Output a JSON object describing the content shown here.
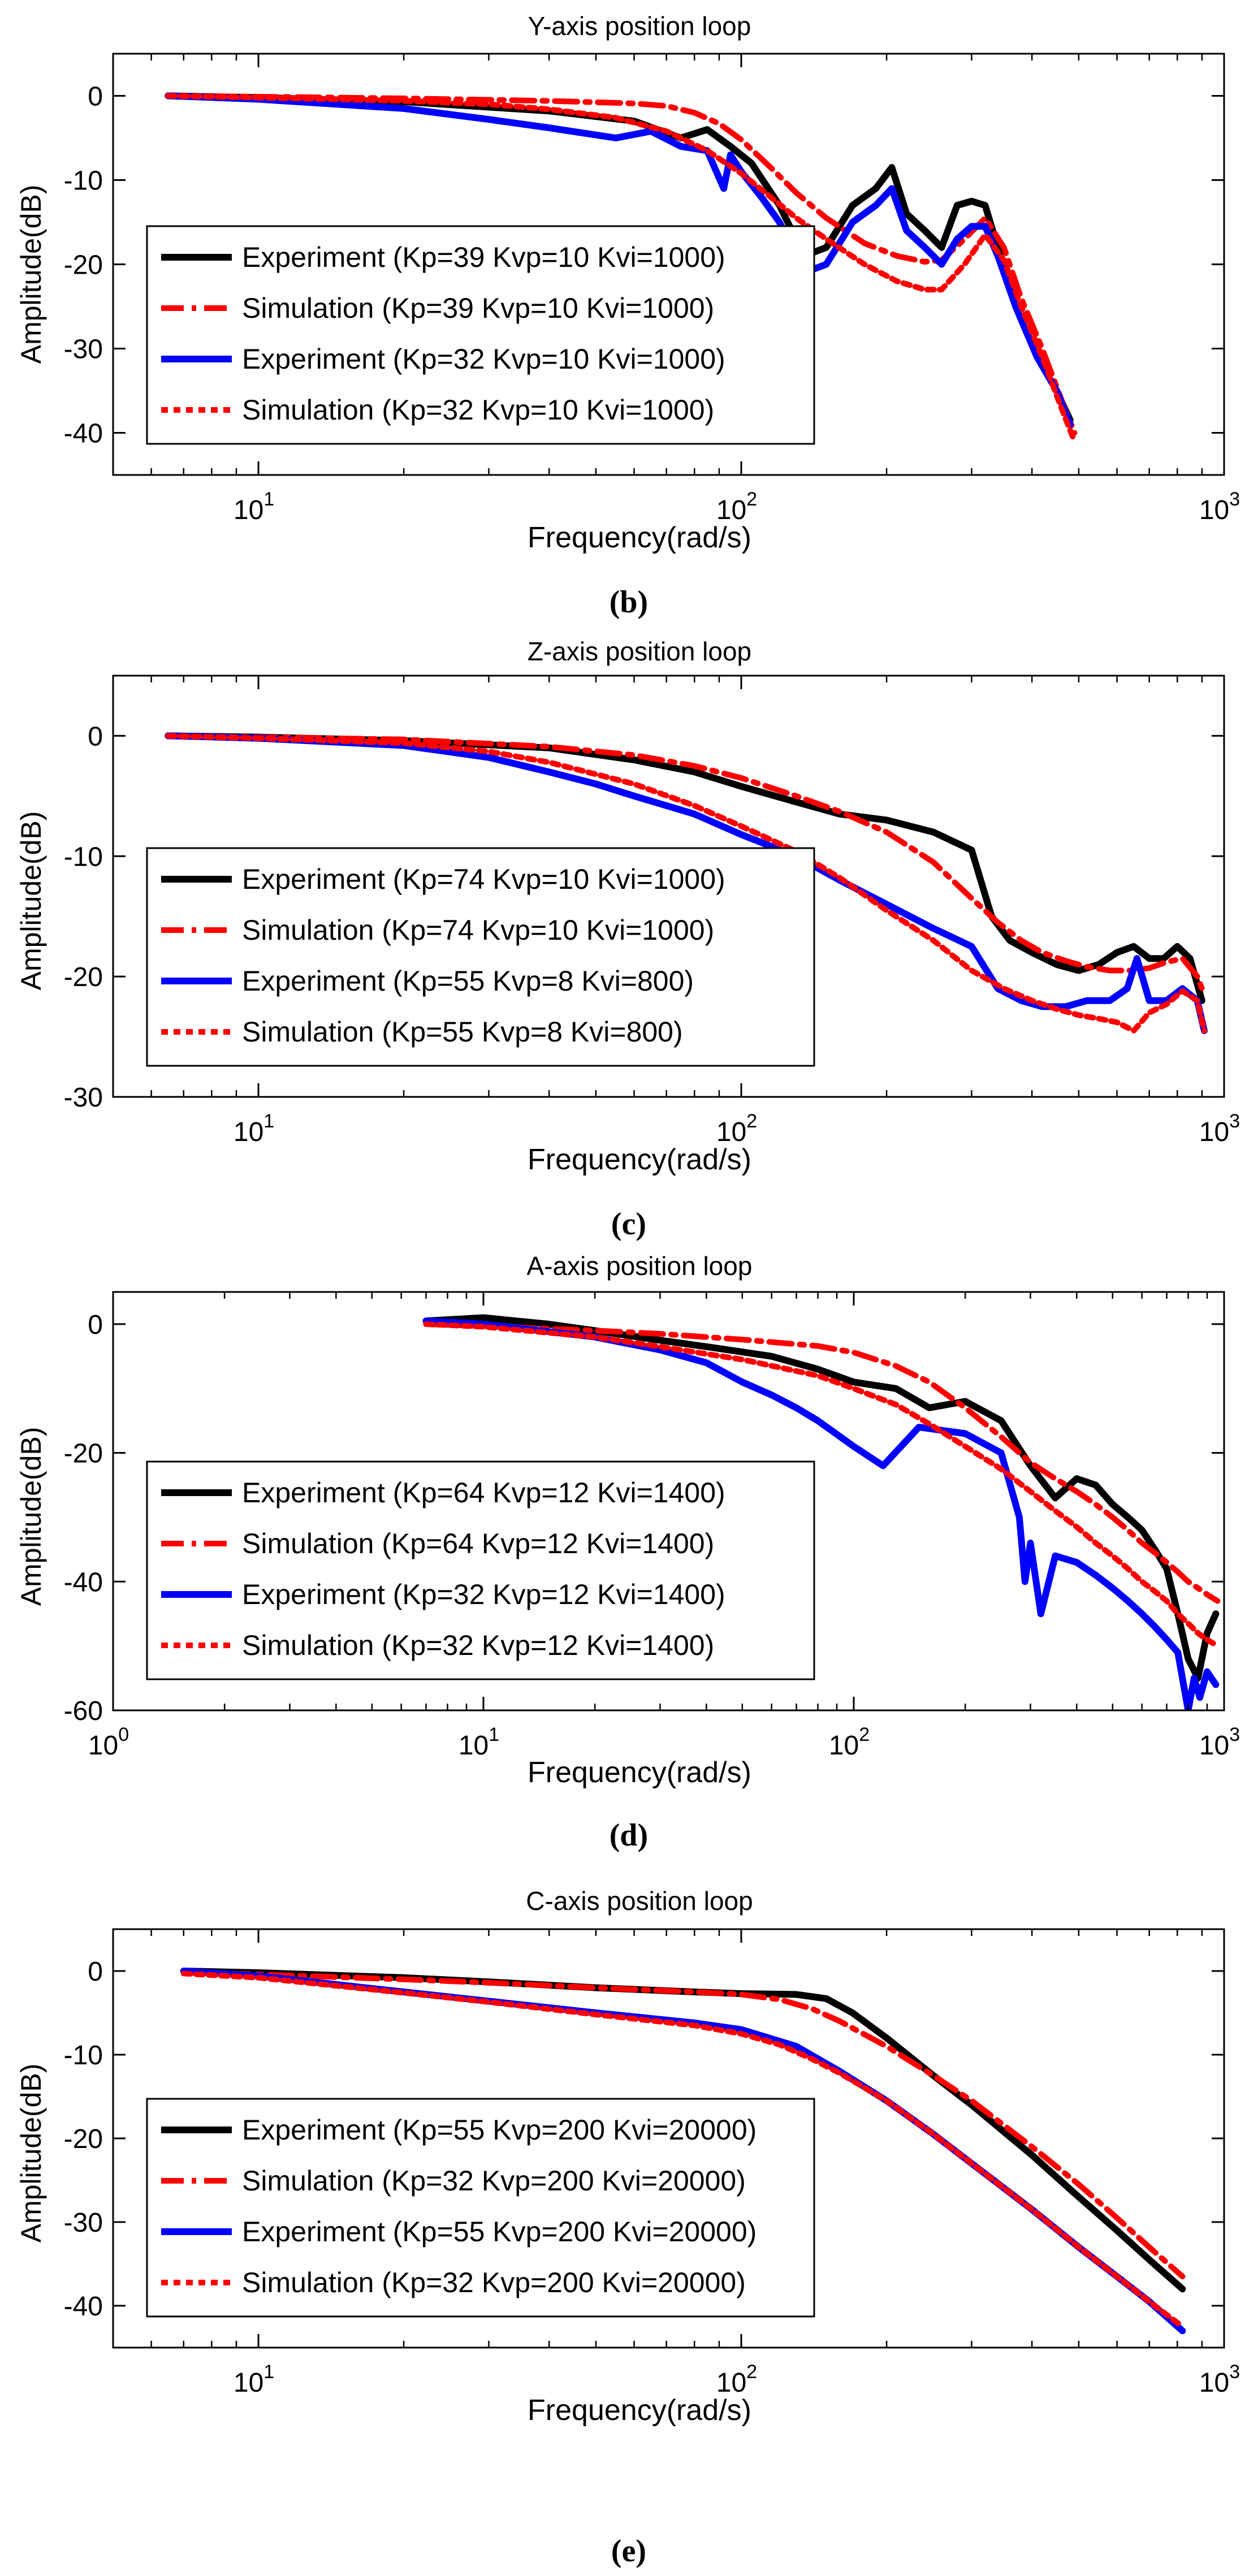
{
  "panels": [
    {
      "title": "Y-axis position loop",
      "xlabel": "Frequency(rad/s)",
      "ylabel": "Amplitude(dB)",
      "label": "(b)"
    },
    {
      "title": "Z-axis position loop",
      "xlabel": "Frequency(rad/s)",
      "ylabel": "Amplitude(dB)",
      "label": "(c)"
    },
    {
      "title": "A-axis position loop",
      "xlabel": "Frequency(rad/s)",
      "ylabel": "Amplitude(dB)",
      "label": "(d)"
    },
    {
      "title": "C-axis position loop",
      "xlabel": "Frequency(rad/s)",
      "ylabel": "Amplitude(dB)",
      "label": "(e)"
    }
  ],
  "chart_data": [
    {
      "type": "line",
      "title": "Y-axis position loop",
      "xlabel": "Frequency(rad/s)",
      "ylabel": "Amplitude(dB)",
      "xscale": "log",
      "xlim": [
        5,
        1000
      ],
      "ylim": [
        -45,
        5
      ],
      "xticks": [
        10,
        100,
        1000
      ],
      "xtick_labels": [
        [
          "10",
          "1"
        ],
        [
          "10",
          "2"
        ],
        [
          "10",
          "3"
        ]
      ],
      "yticks": [
        0,
        -10,
        -20,
        -30,
        -40
      ],
      "ytick_labels": [
        "0",
        "-10",
        "-20",
        "-30",
        "-40"
      ],
      "grid": false,
      "legend_position": "lower-left",
      "series": [
        {
          "name": "Experiment (Kp=39 Kvp=10 Kvi=1000)",
          "color": "#000000",
          "style": "solid",
          "x": [
            6.5,
            10,
            20,
            40,
            60,
            75,
            85,
            95,
            105,
            120,
            135,
            150,
            170,
            190,
            205,
            220,
            240,
            260,
            280,
            300,
            320,
            340,
            370,
            410,
            450,
            480
          ],
          "y": [
            0,
            -0.2,
            -0.7,
            -1.8,
            -3,
            -5,
            -4,
            -6,
            -8,
            -13,
            -19,
            -18,
            -13,
            -11,
            -8.5,
            -14,
            -16,
            -18,
            -13,
            -12.5,
            -13,
            -18,
            -25,
            -31,
            -35,
            -38.5
          ]
        },
        {
          "name": "Simulation (Kp=39 Kvp=10 Kvi=1000)",
          "color": "#ff0000",
          "style": "dashdot",
          "x": [
            6.5,
            10,
            20,
            40,
            60,
            70,
            80,
            90,
            100,
            115,
            130,
            150,
            180,
            210,
            240,
            260,
            290,
            320,
            350,
            380,
            420,
            460,
            490
          ],
          "y": [
            0,
            -0.1,
            -0.3,
            -0.6,
            -0.9,
            -1.2,
            -2,
            -3.3,
            -5.2,
            -8.5,
            -11.5,
            -14.5,
            -17.5,
            -19,
            -19.7,
            -19.5,
            -17,
            -14.5,
            -18,
            -24,
            -30,
            -36,
            -40
          ]
        },
        {
          "name": "Experiment (Kp=32 Kvp=10 Kvi=1000)",
          "color": "#0000ff",
          "style": "solid",
          "x": [
            6.5,
            10,
            20,
            30,
            40,
            55,
            65,
            75,
            85,
            92,
            95,
            100,
            110,
            120,
            135,
            150,
            170,
            190,
            205,
            220,
            240,
            260,
            280,
            300,
            320,
            340,
            370,
            410,
            450,
            480
          ],
          "y": [
            0,
            -0.4,
            -1.5,
            -2.8,
            -3.8,
            -5,
            -4.2,
            -6,
            -6.5,
            -11,
            -7,
            -9,
            -12,
            -15,
            -21,
            -20,
            -15,
            -13,
            -11,
            -16,
            -18,
            -20,
            -17,
            -15.5,
            -15.5,
            -19,
            -25,
            -31,
            -35,
            -39
          ]
        },
        {
          "name": "Simulation (Kp=32 Kvp=10 Kvi=1000)",
          "color": "#ff0000",
          "style": "dotted",
          "x": [
            6.5,
            10,
            20,
            30,
            40,
            55,
            70,
            85,
            100,
            115,
            130,
            150,
            180,
            210,
            240,
            260,
            290,
            320,
            350,
            380,
            420,
            460,
            490
          ],
          "y": [
            0,
            -0.2,
            -0.6,
            -1,
            -1.6,
            -2.6,
            -4.2,
            -6.5,
            -9.2,
            -12,
            -14.5,
            -17,
            -20,
            -22,
            -23,
            -23,
            -20,
            -16.5,
            -19.5,
            -25,
            -31,
            -37,
            -41
          ]
        }
      ]
    },
    {
      "type": "line",
      "title": "Z-axis position loop",
      "xlabel": "Frequency(rad/s)",
      "ylabel": "Amplitude(dB)",
      "xscale": "log",
      "xlim": [
        5,
        1000
      ],
      "ylim": [
        -30,
        5
      ],
      "xticks": [
        10,
        100,
        1000
      ],
      "xtick_labels": [
        [
          "10",
          "1"
        ],
        [
          "10",
          "2"
        ],
        [
          "10",
          "3"
        ]
      ],
      "yticks": [
        0,
        -10,
        -20,
        -30
      ],
      "ytick_labels": [
        "0",
        "-10",
        "-20",
        "-30"
      ],
      "grid": false,
      "legend_position": "lower-left",
      "series": [
        {
          "name": "Experiment (Kp=74 Kvp=10 Kvi=1000)",
          "color": "#000000",
          "style": "solid",
          "x": [
            6.5,
            10,
            20,
            40,
            60,
            80,
            100,
            130,
            160,
            200,
            250,
            300,
            330,
            360,
            400,
            450,
            500,
            550,
            600,
            650,
            700,
            750,
            800,
            850,
            900
          ],
          "y": [
            0,
            -0.1,
            -0.4,
            -1,
            -2,
            -3,
            -4.2,
            -5.5,
            -6.5,
            -7,
            -8,
            -9.5,
            -15,
            -17,
            -18,
            -19,
            -19.5,
            -19,
            -18,
            -17.5,
            -18.5,
            -18.5,
            -17.5,
            -18.5,
            -22
          ]
        },
        {
          "name": "Simulation (Kp=74 Kvp=10 Kvi=1000)",
          "color": "#ff0000",
          "style": "dashdot",
          "x": [
            6.5,
            10,
            20,
            40,
            60,
            80,
            100,
            130,
            160,
            200,
            250,
            300,
            340,
            380,
            420,
            470,
            520,
            580,
            640,
            700,
            760,
            820,
            880,
            910
          ],
          "y": [
            0,
            -0.1,
            -0.3,
            -0.9,
            -1.6,
            -2.5,
            -3.5,
            -5,
            -6.3,
            -8,
            -10.5,
            -13.5,
            -15.5,
            -17,
            -18,
            -18.7,
            -19.2,
            -19.5,
            -19.5,
            -19.3,
            -18.8,
            -18.5,
            -20,
            -21.5
          ]
        },
        {
          "name": "Experiment (Kp=55 Kvp=8 Kvi=800)",
          "color": "#0000ff",
          "style": "solid",
          "x": [
            6.5,
            10,
            20,
            30,
            40,
            50,
            60,
            80,
            100,
            130,
            160,
            200,
            250,
            300,
            340,
            380,
            420,
            470,
            520,
            580,
            630,
            660,
            700,
            760,
            820,
            880,
            910
          ],
          "y": [
            0,
            -0.2,
            -0.8,
            -1.8,
            -3,
            -4,
            -5,
            -6.5,
            -8.2,
            -10,
            -12,
            -14,
            -16,
            -17.5,
            -21,
            -22,
            -22.5,
            -22.5,
            -22,
            -22,
            -21,
            -18.5,
            -22,
            -22,
            -21,
            -22,
            -24.5
          ]
        },
        {
          "name": "Simulation (Kp=55 Kvp=8 Kvi=800)",
          "color": "#ff0000",
          "style": "dotted",
          "x": [
            6.5,
            10,
            20,
            30,
            40,
            60,
            80,
            100,
            130,
            160,
            200,
            250,
            300,
            350,
            400,
            450,
            500,
            550,
            600,
            650,
            700,
            760,
            820,
            880,
            910
          ],
          "y": [
            0,
            -0.2,
            -0.6,
            -1.3,
            -2.2,
            -4,
            -5.8,
            -7.5,
            -9.6,
            -11.8,
            -14.5,
            -17,
            -19.5,
            -21,
            -22,
            -22.7,
            -23.2,
            -23.5,
            -23.8,
            -24.5,
            -23,
            -22.3,
            -21.2,
            -22,
            -24.5
          ]
        }
      ]
    },
    {
      "type": "line",
      "title": "A-axis position loop",
      "xlabel": "Frequency(rad/s)",
      "ylabel": "Amplitude(dB)",
      "xscale": "log",
      "xlim": [
        1,
        1000
      ],
      "ylim": [
        -60,
        5
      ],
      "xticks": [
        1,
        10,
        100,
        1000
      ],
      "xtick_labels": [
        [
          "10",
          "0"
        ],
        [
          "10",
          "1"
        ],
        [
          "10",
          "2"
        ],
        [
          "10",
          "3"
        ]
      ],
      "yticks": [
        0,
        -20,
        -40,
        -60
      ],
      "ytick_labels": [
        "0",
        "-20",
        "-40",
        "-60"
      ],
      "grid": false,
      "legend_position": "lower-left",
      "series": [
        {
          "name": "Experiment (Kp=64 Kvp=12 Kvi=1400)",
          "color": "#000000",
          "style": "solid",
          "x": [
            7,
            10,
            15,
            20,
            30,
            40,
            60,
            80,
            100,
            130,
            160,
            200,
            250,
            300,
            350,
            400,
            450,
            500,
            550,
            600,
            650,
            700,
            750,
            800,
            850,
            900,
            950
          ],
          "y": [
            0.5,
            1,
            0,
            -1,
            -2.5,
            -3.5,
            -5,
            -7,
            -9,
            -10,
            -13,
            -12,
            -15,
            -22,
            -27,
            -24,
            -25,
            -28,
            -30,
            -32,
            -35,
            -38,
            -45,
            -52,
            -55,
            -48,
            -45
          ]
        },
        {
          "name": "Simulation (Kp=64 Kvp=12 Kvi=1400)",
          "color": "#ff0000",
          "style": "dashdot",
          "x": [
            7,
            10,
            20,
            30,
            50,
            80,
            100,
            130,
            160,
            200,
            250,
            300,
            350,
            400,
            450,
            500,
            550,
            600,
            650,
            700,
            750,
            800,
            850,
            900,
            960
          ],
          "y": [
            0,
            -0.3,
            -1,
            -1.5,
            -2.4,
            -3.4,
            -4.4,
            -6.5,
            -9,
            -13,
            -17.5,
            -21.5,
            -24,
            -26,
            -28,
            -30,
            -32,
            -34,
            -35.5,
            -37,
            -38.5,
            -40,
            -41,
            -42,
            -43
          ]
        },
        {
          "name": "Experiment (Kp=32 Kvp=12 Kvi=1400)",
          "color": "#0000ff",
          "style": "solid",
          "x": [
            7,
            10,
            20,
            30,
            40,
            50,
            60,
            70,
            80,
            100,
            120,
            150,
            200,
            250,
            280,
            290,
            300,
            320,
            350,
            400,
            450,
            500,
            550,
            600,
            650,
            700,
            750,
            800,
            830,
            860,
            900,
            950
          ],
          "y": [
            0.5,
            0,
            -2,
            -4,
            -6,
            -9,
            -11,
            -13,
            -15,
            -19,
            -22,
            -16,
            -17,
            -20,
            -30,
            -40,
            -34,
            -45,
            -36,
            -37,
            -39,
            -41,
            -43,
            -45,
            -47,
            -49,
            -51,
            -60,
            -55,
            -58,
            -54,
            -56
          ]
        },
        {
          "name": "Simulation (Kp=32 Kvp=12 Kvi=1400)",
          "color": "#ff0000",
          "style": "dotted",
          "x": [
            7,
            10,
            20,
            30,
            50,
            80,
            100,
            130,
            160,
            200,
            250,
            300,
            350,
            400,
            450,
            500,
            550,
            600,
            650,
            700,
            750,
            800,
            850,
            900,
            960
          ],
          "y": [
            0,
            -0.4,
            -2,
            -3.5,
            -5.5,
            -8,
            -10,
            -12.5,
            -15.5,
            -19,
            -22.5,
            -26,
            -29,
            -31.5,
            -34,
            -36,
            -38,
            -40,
            -41.5,
            -43,
            -45,
            -46.5,
            -48,
            -49,
            -50
          ]
        }
      ]
    },
    {
      "type": "line",
      "title": "C-axis position loop",
      "xlabel": "Frequency(rad/s)",
      "ylabel": "Amplitude(dB)",
      "xscale": "log",
      "xlim": [
        5,
        1000
      ],
      "ylim": [
        -45,
        5
      ],
      "xticks": [
        10,
        100,
        1000
      ],
      "xtick_labels": [
        [
          "10",
          "1"
        ],
        [
          "10",
          "2"
        ],
        [
          "10",
          "3"
        ]
      ],
      "yticks": [
        0,
        -10,
        -20,
        -30,
        -40
      ],
      "ytick_labels": [
        "0",
        "-10",
        "-20",
        "-30",
        "-40"
      ],
      "grid": false,
      "legend_position": "lower-left",
      "series": [
        {
          "name": "Experiment (Kp=55 Kvp=200 Kvi=20000)",
          "color": "#000000",
          "style": "solid",
          "x": [
            7,
            10,
            20,
            30,
            50,
            80,
            100,
            130,
            150,
            170,
            200,
            250,
            300,
            400,
            500,
            600,
            700,
            820
          ],
          "y": [
            0,
            -0.2,
            -0.8,
            -1.3,
            -2,
            -2.5,
            -2.7,
            -2.8,
            -3.3,
            -5,
            -8,
            -12.5,
            -16,
            -22,
            -27,
            -31,
            -34.5,
            -38
          ]
        },
        {
          "name": "Simulation (Kp=32 Kvp=200 Kvi=20000)",
          "color": "#ff0000",
          "style": "dashdot",
          "x": [
            7,
            10,
            20,
            30,
            50,
            80,
            100,
            120,
            140,
            160,
            200,
            250,
            300,
            400,
            500,
            600,
            700,
            820
          ],
          "y": [
            -0.2,
            -0.4,
            -1,
            -1.4,
            -2,
            -2.5,
            -2.8,
            -3.4,
            -4.5,
            -6,
            -9,
            -12.5,
            -15.5,
            -21,
            -25.5,
            -29.5,
            -33,
            -36.5
          ]
        },
        {
          "name": "Experiment (Kp=55 Kvp=200 Kvi=20000)",
          "color": "#0000ff",
          "style": "solid",
          "x": [
            7,
            10,
            20,
            30,
            50,
            80,
            100,
            130,
            160,
            200,
            250,
            300,
            400,
            500,
            600,
            700,
            820
          ],
          "y": [
            0,
            -0.6,
            -2.5,
            -3.6,
            -5,
            -6.2,
            -7,
            -9,
            -12,
            -15.5,
            -19.5,
            -23,
            -28.5,
            -33,
            -36.5,
            -39.5,
            -43
          ]
        },
        {
          "name": "Simulation (Kp=32 Kvp=200 Kvi=20000)",
          "color": "#ff0000",
          "style": "dotted",
          "x": [
            7,
            10,
            20,
            30,
            50,
            80,
            100,
            120,
            140,
            160,
            200,
            250,
            300,
            400,
            500,
            600,
            700,
            820
          ],
          "y": [
            -0.3,
            -0.8,
            -2.6,
            -3.7,
            -5.2,
            -6.5,
            -7.5,
            -8.8,
            -10.5,
            -12.2,
            -15.5,
            -19.5,
            -23,
            -28.5,
            -33,
            -36.5,
            -39.5,
            -42.5
          ]
        }
      ]
    }
  ]
}
